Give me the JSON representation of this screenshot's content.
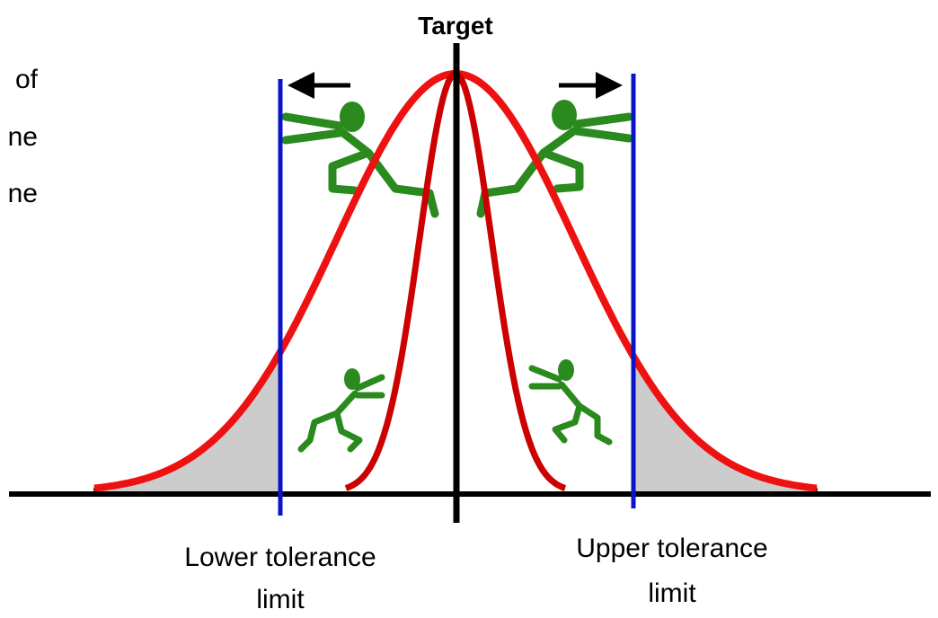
{
  "side_text": [
    "of",
    "ne",
    "ne"
  ],
  "target_label": "Target",
  "lower_limit": {
    "lines": [
      "Lower tolerance",
      "limit"
    ]
  },
  "upper_limit": {
    "lines": [
      "Upper tolerance",
      "limit"
    ]
  }
}
